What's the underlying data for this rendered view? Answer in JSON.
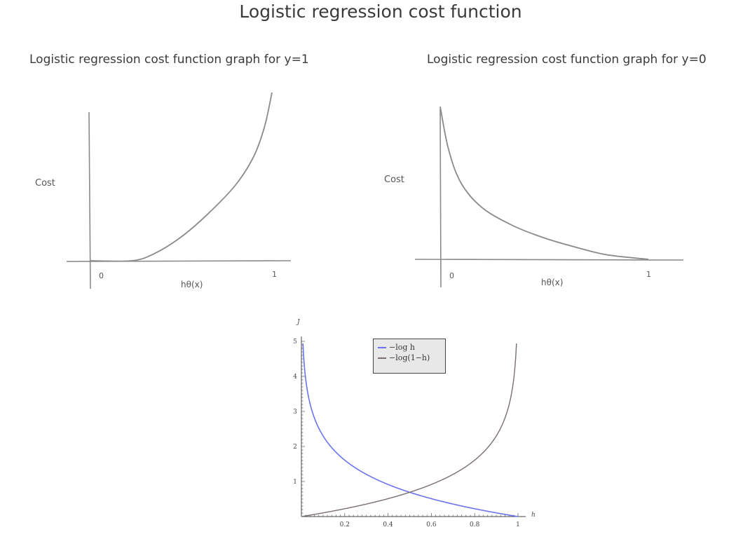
{
  "title": "Logistic regression cost function",
  "colors": {
    "blue": "#6b73ee",
    "brown": "#7a6e73",
    "sketch": "#8a8a8a"
  },
  "chart_data": [
    {
      "type": "line",
      "title": "Logistic regression cost function graph for y=1",
      "xlabel": "hθ(x)",
      "ylabel": "Cost",
      "x_tick_labels": [
        "0",
        "1"
      ],
      "series": [
        {
          "x": [
            0,
            0.23,
            0.35,
            0.5,
            0.65,
            0.8,
            0.9,
            0.96,
            1.0
          ],
          "y": [
            0,
            0,
            0.04,
            0.14,
            0.28,
            0.45,
            0.62,
            0.8,
            1.0
          ]
        }
      ]
    },
    {
      "type": "line",
      "title": "Logistic regression cost function graph for y=0",
      "xlabel": "hθ(x)",
      "ylabel": "Cost",
      "x_tick_labels": [
        "0",
        "1"
      ],
      "series": [
        {
          "x": [
            0,
            0.04,
            0.1,
            0.2,
            0.35,
            0.5,
            0.65,
            0.8,
            1.0
          ],
          "y": [
            1.0,
            0.72,
            0.5,
            0.34,
            0.22,
            0.14,
            0.08,
            0.03,
            0
          ]
        }
      ]
    },
    {
      "type": "line",
      "xlabel": "h",
      "ylabel": "J",
      "xlim": [
        0,
        1
      ],
      "ylim": [
        0,
        5
      ],
      "x_ticks": [
        0.2,
        0.4,
        0.6,
        0.8,
        1
      ],
      "x_tick_labels": [
        "0.2",
        "0.4",
        "0.6",
        "0.8",
        "1"
      ],
      "y_ticks": [
        1,
        2,
        3,
        4,
        5
      ],
      "y_tick_labels": [
        "1",
        "2",
        "3",
        "4",
        "5"
      ],
      "legend_position": "top-center",
      "series": [
        {
          "name": "−log h",
          "function": "-log(h)",
          "color": "blue",
          "style": "solid"
        },
        {
          "name": "−log(1−h)",
          "function": "-log(1-h)",
          "color": "brown",
          "style": "dashed"
        }
      ]
    }
  ]
}
